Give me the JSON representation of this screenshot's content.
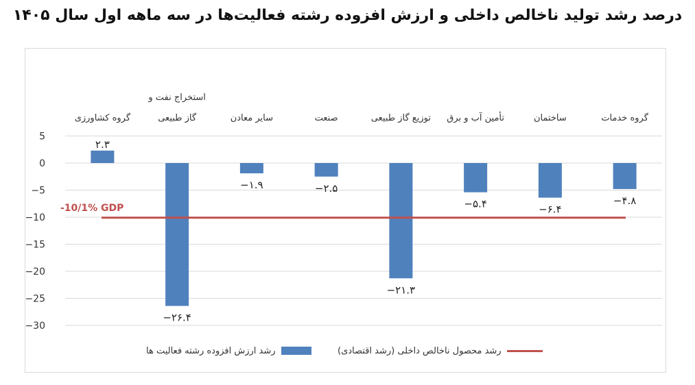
{
  "title": "درصد رشد تولید ناخالص داخلی و ارزش افزوده رشته فعالیت‌ها در سه ماهه اول سال ۱۴۰۵",
  "chart_data": {
    "type": "bar",
    "categories": [
      "گروه کشاورزی",
      "استخراج نفت و گاز طبیعی",
      "سایر معادن",
      "صنعت",
      "توزیع گاز طبیعی",
      "تأمین آب و برق",
      "ساختمان",
      "گروه خدمات"
    ],
    "category_lines": [
      [
        "گروه کشاورزی"
      ],
      [
        "استخراج نفت و",
        "گاز طبیعی"
      ],
      [
        "سایر معادن"
      ],
      [
        "صنعت"
      ],
      [
        "توزیع گاز طبیعی"
      ],
      [
        "تأمین آب و برق"
      ],
      [
        "ساختمان"
      ],
      [
        "گروه خدمات"
      ]
    ],
    "series": [
      {
        "name": "رشد ارزش افزوده رشته فعالیت ها",
        "values": [
          2.3,
          -26.4,
          -1.9,
          -2.5,
          -21.3,
          -5.4,
          -6.4,
          -4.8
        ],
        "color": "#4F81BD"
      }
    ],
    "value_labels": [
      "۲.۳",
      "−۲۶.۴",
      "−۱.۹",
      "−۲.۵",
      "−۲۱.۳",
      "−۵.۴",
      "−۶.۴",
      "−۴.۸"
    ],
    "ylim": [
      -30,
      5
    ],
    "yticks": [
      5,
      0,
      -5,
      -10,
      -15,
      -20,
      -25,
      -30
    ],
    "ytick_labels": [
      "5",
      "0",
      "−5",
      "−10",
      "−15",
      "−20",
      "−25",
      "−30"
    ],
    "reference_line": {
      "name": "رشد محصول ناخالص داخلی (رشد اقتصادی)",
      "value": -10.1,
      "label": "-10/1%  GDP",
      "color": "#C0504D"
    },
    "grid": true,
    "legend_position": "bottom"
  }
}
